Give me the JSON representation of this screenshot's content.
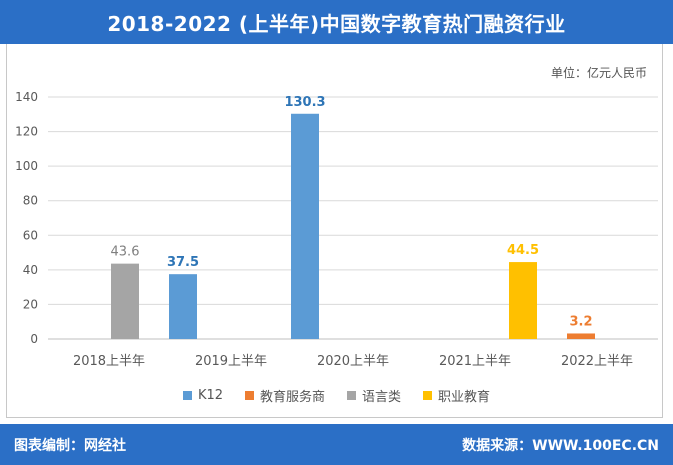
{
  "header": {
    "title": "2018-2022 (上半年)中国数字教育热门融资行业"
  },
  "unit_label": "单位：亿元人民币",
  "footer": {
    "left": "图表编制：网经社",
    "right": "数据来源：WWW.100EC.CN"
  },
  "chart_data": {
    "type": "bar",
    "categories": [
      "2018上半年",
      "2019上半年",
      "2020上半年",
      "2021上半年",
      "2022上半年"
    ],
    "series": [
      {
        "name": "K12",
        "color": "#5b9bd5",
        "values": [
          null,
          37.5,
          130.3,
          null,
          null
        ]
      },
      {
        "name": "教育服务商",
        "color": "#ed7d31",
        "values": [
          null,
          null,
          null,
          null,
          3.2
        ]
      },
      {
        "name": "语言类",
        "color": "#a5a5a5",
        "values": [
          43.6,
          null,
          null,
          null,
          null
        ]
      },
      {
        "name": "职业教育",
        "color": "#ffc000",
        "values": [
          null,
          null,
          null,
          44.5,
          null
        ]
      }
    ],
    "data_labels": [
      {
        "category": "2018上半年",
        "value": 43.6,
        "text": "43.6",
        "color": "#7f7f7f"
      },
      {
        "category": "2019上半年",
        "value": 37.5,
        "text": "37.5",
        "color": "#2e75b6"
      },
      {
        "category": "2020上半年",
        "value": 130.3,
        "text": "130.3",
        "color": "#2e75b6"
      },
      {
        "category": "2021上半年",
        "value": 44.5,
        "text": "44.5",
        "color": "#ffc000"
      },
      {
        "category": "2022上半年",
        "value": 3.2,
        "text": "3.2",
        "color": "#ed7d31"
      }
    ],
    "yticks": [
      "0",
      "20",
      "40",
      "60",
      "80",
      "100",
      "120",
      "140"
    ],
    "ylim": [
      0,
      140
    ],
    "grid": true,
    "legend_position": "bottom"
  }
}
